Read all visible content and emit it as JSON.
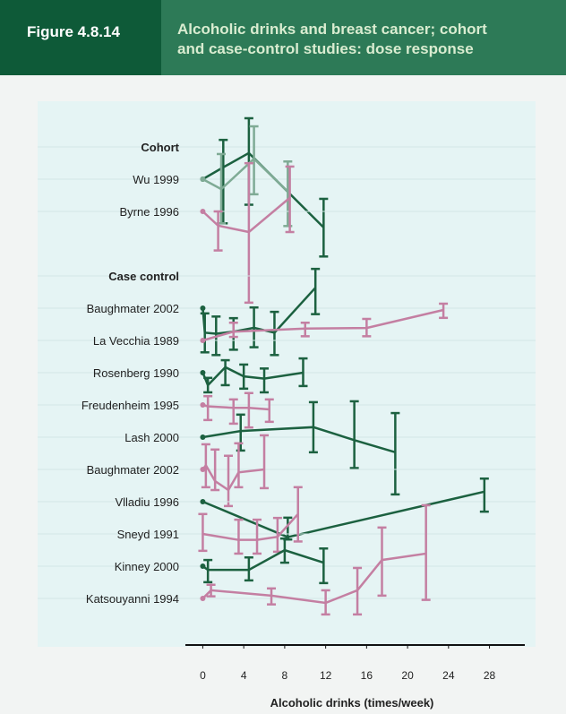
{
  "figure_label": "Figure 4.8.14",
  "chart_data": {
    "type": "dose-response",
    "title": "Alcoholic drinks and breast cancer; cohort and case-control studies: dose response",
    "x_label": "Alcoholic drinks (times/week)",
    "xlim": [
      -1.7,
      32.5
    ],
    "xticks": [
      0,
      4,
      8,
      12,
      16,
      20,
      24,
      28
    ],
    "groups": [
      {
        "name": "Cohort",
        "studies": [
          {
            "name": "Wu 1999",
            "series": [
              {
                "color": "#1c6140",
                "x": [
                  0,
                  2,
                  4.5,
                  11.8
                ],
                "values": [
                  1,
                  1.18,
                  1.44,
                  0.51
                ],
                "ci": [
                  null,
                  [
                    0.54,
                    1.73
                  ],
                  [
                    0.7,
                    2.34
                  ],
                  [
                    0.34,
                    0.76
                  ]
                ]
              },
              {
                "color": "#7fab95",
                "x": [
                  0,
                  1.8,
                  5,
                  8.3
                ],
                "values": [
                  1,
                  0.87,
                  1.33,
                  0.84
                ],
                "ci": [
                  null,
                  [
                    0.54,
                    1.42
                  ],
                  [
                    0.81,
                    2.09
                  ],
                  [
                    0.52,
                    1.28
                  ]
                ]
              }
            ]
          },
          {
            "name": "Byrne 1996",
            "series": [
              {
                "color": "#c47fa2",
                "x": [
                  0,
                  1.5,
                  4.5,
                  8.5
                ],
                "values": [
                  1,
                  0.82,
                  0.75,
                  1.21
                ],
                "ci": [
                  null,
                  [
                    0.58,
                    1.0
                  ],
                  [
                    0.28,
                    1.96
                  ],
                  [
                    0.75,
                    1.87
                  ]
                ]
              }
            ]
          }
        ]
      },
      {
        "name": "Case control",
        "studies": [
          {
            "name": "Baughmater 2002",
            "series": [
              {
                "color": "#1c6140",
                "x": [
                  0,
                  0.2,
                  1.3,
                  3,
                  5,
                  7,
                  11
                ],
                "values": [
                  1,
                  0.71,
                  0.7,
                  0.72,
                  0.76,
                  0.71,
                  1.33
                ],
                "ci": [
                  null,
                  [
                    0.54,
                    0.93
                  ],
                  [
                    0.52,
                    0.89
                  ],
                  [
                    0.56,
                    0.87
                  ],
                  [
                    0.58,
                    1.01
                  ],
                  [
                    0.52,
                    0.95
                  ],
                  [
                    0.92,
                    1.73
                  ]
                ]
              }
            ]
          },
          {
            "name": "La Vecchia 1989",
            "series": [
              {
                "color": "#c47fa2",
                "x": [
                  0,
                  3,
                  10,
                  16,
                  23.5
                ],
                "values": [
                  1,
                  1.13,
                  1.18,
                  1.19,
                  1.53
                ],
                "ci": [
                  null,
                  [
                    1.05,
                    1.28
                  ],
                  [
                    1.06,
                    1.28
                  ],
                  [
                    1.06,
                    1.35
                  ],
                  [
                    1.37,
                    1.67
                  ]
                ]
              }
            ]
          },
          {
            "name": "Rosenberg 1990",
            "series": [
              {
                "color": "#1c6140",
                "x": [
                  0,
                  0.5,
                  2.2,
                  4,
                  6,
                  9.8
                ],
                "values": [
                  1,
                  0.84,
                  1.08,
                  0.95,
                  0.92,
                  1
                ],
                "ci": [
                  null,
                  [
                    0.76,
                    0.93
                  ],
                  [
                    0.84,
                    1.19
                  ],
                  [
                    0.8,
                    1.12
                  ],
                  [
                    0.76,
                    1.06
                  ],
                  [
                    0.83,
                    1.22
                  ]
                ]
              }
            ]
          },
          {
            "name": "Freudenheim 1995",
            "series": [
              {
                "color": "#c47fa2",
                "x": [
                  0,
                  0.5,
                  3,
                  4.5,
                  6.5
                ],
                "values": [
                  1,
                  0.98,
                  0.96,
                  0.96,
                  0.94
                ],
                "ci": [
                  null,
                  [
                    0.81,
                    1.13
                  ],
                  [
                    0.77,
                    1.08
                  ],
                  [
                    0.73,
                    1.18
                  ],
                  [
                    0.79,
                    1.08
                  ]
                ]
              }
            ]
          },
          {
            "name": "Lash 2000",
            "series": [
              {
                "color": "#1c6140",
                "x": [
                  0,
                  3.7,
                  10.8,
                  14.8,
                  18.8
                ],
                "values": [
                  1,
                  1.09,
                  1.15,
                  0.96,
                  0.81
                ],
                "ci": [
                  null,
                  [
                    0.83,
                    1.37
                  ],
                  [
                    0.81,
                    1.63
                  ],
                  [
                    0.65,
                    1.65
                  ],
                  [
                    0.45,
                    1.4
                  ]
                ]
              }
            ]
          },
          {
            "name": "Baughmater 2002",
            "series": [
              {
                "color": "#c47fa2",
                "x": [
                  0,
                  0.3,
                  1.2,
                  2.5,
                  3.5,
                  6
                ],
                "values": [
                  1,
                  1.06,
                  0.85,
                  0.75,
                  0.96,
                  1.0
                ],
                "ci": [
                  null,
                  [
                    0.78,
                    1.42
                  ],
                  [
                    0.75,
                    1.32
                  ],
                  [
                    0.6,
                    1.21
                  ],
                  [
                    0.78,
                    1.44
                  ],
                  [
                    0.77,
                    1.61
                  ]
                ]
              }
            ]
          },
          {
            "name": "Vlladiu 1996",
            "series": [
              {
                "color": "#1c6140",
                "x": [
                  0,
                  8.3,
                  27.5
                ],
                "values": [
                  1,
                  0.61,
                  1.15
                ],
                "ci": [
                  null,
                  [
                    0.59,
                    0.8
                  ],
                  [
                    0.87,
                    1.38
                  ]
                ]
              }
            ]
          },
          {
            "name": "Sneyd 1991",
            "series": [
              {
                "color": "#c47fa2",
                "x": [
                  0,
                  3.5,
                  5.3,
                  7.3,
                  9.3
                ],
                "values": [
                  1,
                  0.92,
                  0.92,
                  0.96,
                  1.32
                ],
                "ci": [
                  [
                    0.79,
                    1.32
                  ],
                  [
                    0.76,
                    1.22
                  ],
                  [
                    0.76,
                    1.22
                  ],
                  [
                    0.78,
                    1.25
                  ],
                  [
                    0.9,
                    1.92
                  ]
                ]
              }
            ]
          },
          {
            "name": "Kinney 2000",
            "series": [
              {
                "color": "#1c6140",
                "x": [
                  0,
                  0.5,
                  4.5,
                  8,
                  11.8
                ],
                "values": [
                  1,
                  0.95,
                  0.95,
                  1.25,
                  1.05
                ],
                "ci": [
                  null,
                  [
                    0.8,
                    1.09
                  ],
                  [
                    0.82,
                    1.13
                  ],
                  [
                    1.05,
                    1.47
                  ],
                  [
                    0.79,
                    1.28
                  ]
                ]
              }
            ]
          },
          {
            "name": "Katsouyanni 1994",
            "series": [
              {
                "color": "#c47fa2",
                "x": [
                  0,
                  0.8,
                  6.7,
                  12,
                  15.1,
                  17.5,
                  21.8
                ],
                "values": [
                  1,
                  1.12,
                  1.04,
                  0.94,
                  1.12,
                  1.71,
                  1.87
                ],
                "ci": [
                  null,
                  [
                    1.03,
                    1.21
                  ],
                  [
                    0.92,
                    1.15
                  ],
                  [
                    0.8,
                    1.12
                  ],
                  [
                    0.8,
                    1.53
                  ],
                  [
                    1.04,
                    2.69
                  ],
                  [
                    0.98,
                    3.67
                  ]
                ]
              }
            ]
          }
        ]
      }
    ]
  }
}
